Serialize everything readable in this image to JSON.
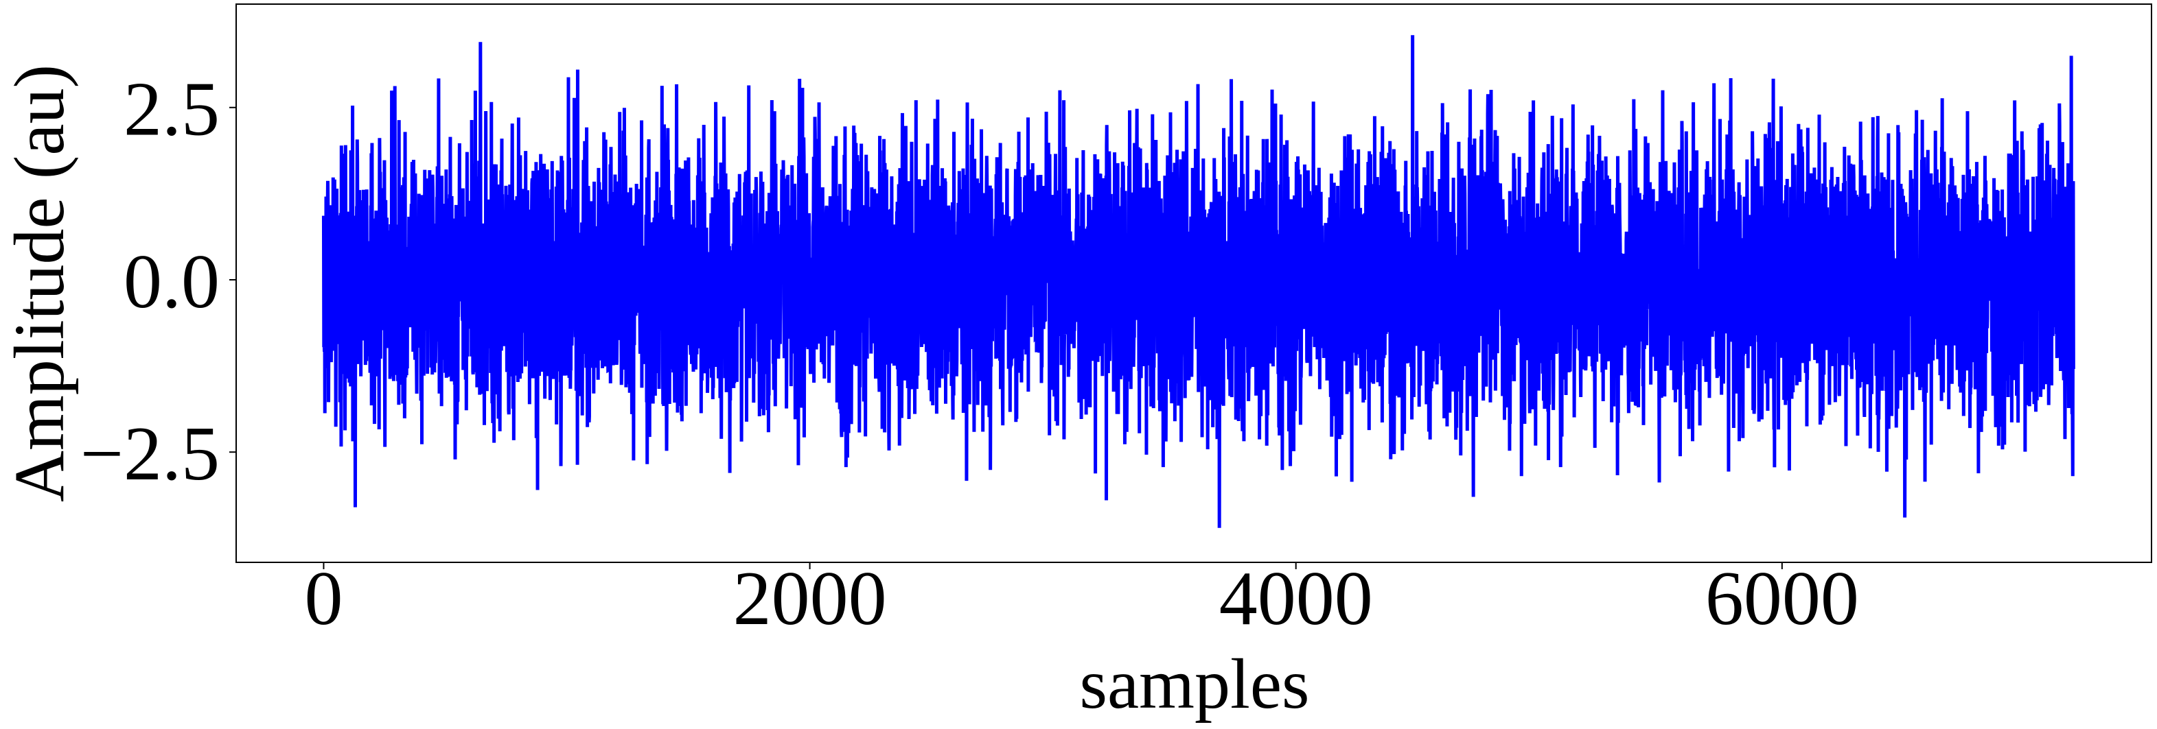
{
  "chart_data": {
    "type": "line",
    "title": "",
    "xlabel": "samples",
    "ylabel": "Amplitude (au)",
    "xlim": [
      -360,
      7520
    ],
    "ylim": [
      -4.1,
      4.0
    ],
    "x_ticks": [
      0,
      2000,
      4000,
      6000
    ],
    "x_tick_labels": [
      "0",
      "2000",
      "4000",
      "6000"
    ],
    "y_ticks": [
      -2.5,
      0.0,
      2.5
    ],
    "y_tick_labels": [
      "−2.5",
      "0.0",
      "2.5"
    ],
    "grid": false,
    "legend": "none",
    "series": [
      {
        "color": "#0000ff",
        "n_samples": 7200,
        "x_start": 0,
        "x_end": 7199,
        "mean": 0.0,
        "std": 1.0,
        "extreme_points": [
          {
            "x": 645,
            "y": 3.45
          },
          {
            "x": 1045,
            "y": 3.05
          },
          {
            "x": 4480,
            "y": 3.55
          },
          {
            "x": 7190,
            "y": 3.25
          },
          {
            "x": 130,
            "y": -3.3
          },
          {
            "x": 880,
            "y": -3.05
          },
          {
            "x": 3685,
            "y": -3.6
          },
          {
            "x": 6505,
            "y": -3.45
          },
          {
            "x": 4730,
            "y": -3.15
          },
          {
            "x": 3220,
            "y": -3.2
          }
        ]
      }
    ]
  }
}
